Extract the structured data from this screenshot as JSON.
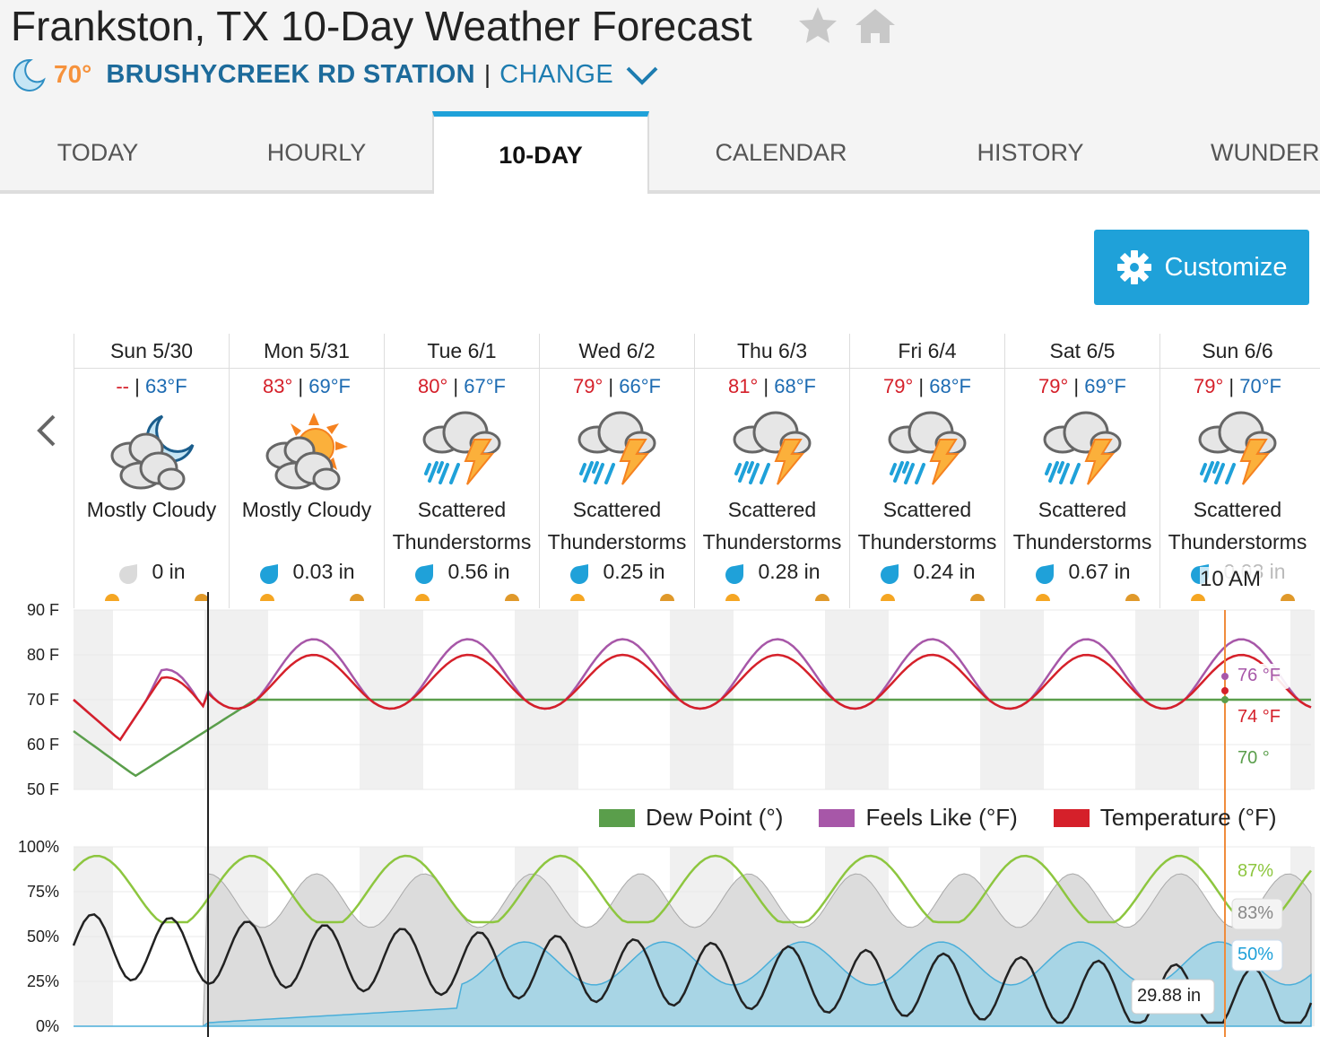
{
  "header": {
    "title": "Frankston, TX 10-Day Weather Forecast",
    "current_temp": "70°",
    "station_name": "BRUSHYCREEK RD STATION",
    "separator": "|",
    "change_label": "CHANGE"
  },
  "tabs": [
    {
      "label": "TODAY"
    },
    {
      "label": "HOURLY"
    },
    {
      "label": "10-DAY",
      "active": true
    },
    {
      "label": "CALENDAR"
    },
    {
      "label": "HISTORY"
    },
    {
      "label": "WUNDER"
    }
  ],
  "customize_label": "Customize",
  "days": [
    {
      "label": "Sun 5/30",
      "hi": "--",
      "lo": "63°F",
      "icon": "moon-cloud-icon",
      "condition": "Mostly Cloudy",
      "precip": "0 in"
    },
    {
      "label": "Mon 5/31",
      "hi": "83°",
      "lo": "69°F",
      "icon": "sun-cloud-icon",
      "condition": "Mostly Cloudy",
      "precip": "0.03 in"
    },
    {
      "label": "Tue 6/1",
      "hi": "80°",
      "lo": "67°F",
      "icon": "thunderstorm-icon",
      "condition": "Scattered Thunderstorms",
      "precip": "0.56 in"
    },
    {
      "label": "Wed 6/2",
      "hi": "79°",
      "lo": "66°F",
      "icon": "thunderstorm-icon",
      "condition": "Scattered Thunderstorms",
      "precip": "0.25 in"
    },
    {
      "label": "Thu 6/3",
      "hi": "81°",
      "lo": "68°F",
      "icon": "thunderstorm-icon",
      "condition": "Scattered Thunderstorms",
      "precip": "0.28 in"
    },
    {
      "label": "Fri 6/4",
      "hi": "79°",
      "lo": "68°F",
      "icon": "thunderstorm-icon",
      "condition": "Scattered Thunderstorms",
      "precip": "0.24 in"
    },
    {
      "label": "Sat 6/5",
      "hi": "79°",
      "lo": "69°F",
      "icon": "thunderstorm-icon",
      "condition": "Scattered Thunderstorms",
      "precip": "0.67 in"
    },
    {
      "label": "Sun 6/6",
      "hi": "79°",
      "lo": "70°F",
      "icon": "thunderstorm-icon",
      "condition": "Scattered Thunderstorms",
      "precip": "0.03 in"
    }
  ],
  "hover_time": "10 AM",
  "temp_chart": {
    "y_ticks": [
      "90 F",
      "80 F",
      "70 F",
      "60 F",
      "50 F"
    ],
    "tooltip_feels": "76 °F",
    "tooltip_temp": "74 °F",
    "tooltip_dew": "70 °"
  },
  "legend": [
    {
      "label": "Dew Point (°)",
      "color": "#5a9e4b"
    },
    {
      "label": "Feels Like (°F)",
      "color": "#a757a8"
    },
    {
      "label": "Temperature (°F)",
      "color": "#d5202a"
    }
  ],
  "pct_chart": {
    "y_ticks": [
      "100%",
      "75%",
      "50%",
      "25%",
      "0%"
    ],
    "tooltip_humidity": "87%",
    "tooltip_cloud": "83%",
    "tooltip_precip_chance": "50%",
    "tooltip_pressure": "29.88 in"
  },
  "colors": {
    "accent": "#1fa1d9",
    "station": "#1d6b9b",
    "current_temp": "#f6923c",
    "hi": "#d5202a",
    "lo": "#1d6bb2",
    "dew": "#5a9e4b",
    "feels": "#a757a8",
    "temp": "#d5202a",
    "humidity": "#8dc63f",
    "cloud": "#b8b8b8",
    "precip_chance": "#4aaed9",
    "pressure": "#222222",
    "now_line": "#f08c3c"
  }
}
